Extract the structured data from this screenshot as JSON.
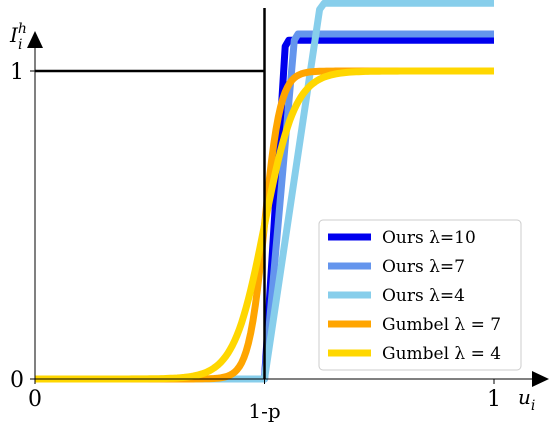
{
  "chart_data": {
    "type": "line",
    "title": "",
    "xlabel": "u",
    "xlabel_sub": "i",
    "ylabel": "I",
    "ylabel_sup": "h",
    "ylabel_sub": "i",
    "xlim": [
      0,
      1.05
    ],
    "ylim": [
      0,
      1.2
    ],
    "x_ticks": [
      {
        "value": 0,
        "label": "0"
      },
      {
        "value": 0.5,
        "label": "1-p"
      },
      {
        "value": 1,
        "label": "1"
      }
    ],
    "y_ticks": [
      {
        "value": 0,
        "label": "0"
      },
      {
        "value": 1,
        "label": "1"
      }
    ],
    "reference_lines": {
      "vertical_x": 0.5,
      "horizontal_y": 1
    },
    "legend_position": "lower-right",
    "series": [
      {
        "name": "Ours λ=10",
        "color": "#0000ee",
        "kind": "ramp",
        "x": [
          0,
          0.5,
          0.545,
          0.553,
          1
        ],
        "y": [
          0,
          0,
          1.08,
          1.1,
          1.1
        ]
      },
      {
        "name": "Ours λ=7",
        "color": "#6495ed",
        "kind": "ramp",
        "x": [
          0,
          0.5,
          0.565,
          0.573,
          1
        ],
        "y": [
          0,
          0,
          1.1,
          1.12,
          1.12
        ]
      },
      {
        "name": "Ours λ=4",
        "color": "#87ceeb",
        "kind": "ramp",
        "x": [
          0,
          0.5,
          0.62,
          0.63,
          1
        ],
        "y": [
          0,
          0,
          1.2,
          1.22,
          1.22
        ]
      },
      {
        "name": "Gumbel λ = 7",
        "color": "#ffa500",
        "kind": "sigmoid",
        "center": 0.5,
        "k": 58
      },
      {
        "name": "Gumbel λ = 4",
        "color": "#ffd700",
        "kind": "sigmoid",
        "center": 0.5,
        "k": 30
      }
    ]
  }
}
